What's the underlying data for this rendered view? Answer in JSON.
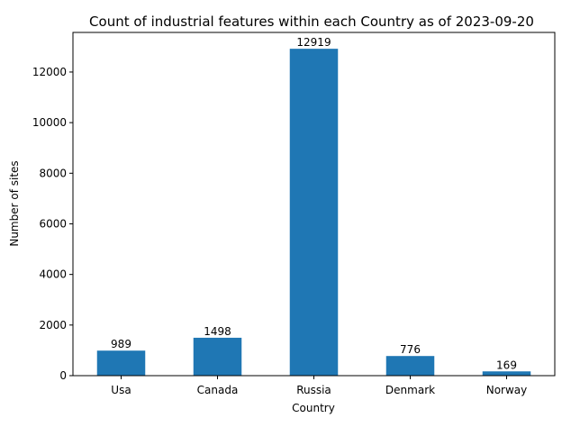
{
  "chart_data": {
    "type": "bar",
    "title": "Count of industrial features within each Country as of 2023-09-20",
    "xlabel": "Country",
    "ylabel": "Number of sites",
    "categories": [
      "Usa",
      "Canada",
      "Russia",
      "Denmark",
      "Norway"
    ],
    "values": [
      989,
      1498,
      12919,
      776,
      169
    ],
    "value_labels": [
      "989",
      "1498",
      "12919",
      "776",
      "169"
    ],
    "ylim": [
      0,
      13564.95
    ],
    "yticks": [
      0,
      2000,
      4000,
      6000,
      8000,
      10000,
      12000
    ],
    "ytick_labels": [
      "0",
      "2000",
      "4000",
      "6000",
      "8000",
      "10000",
      "12000"
    ],
    "grid": false,
    "legend": "none",
    "bar_color": "#1f77b4"
  }
}
